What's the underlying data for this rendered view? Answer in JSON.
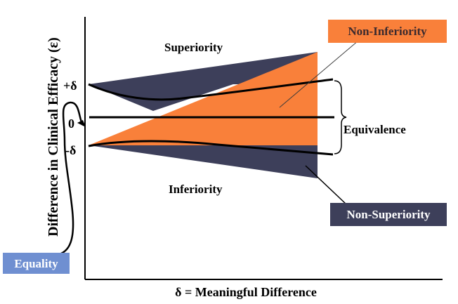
{
  "axes": {
    "y_label": "Difference in Clinical Efficacy (ε)",
    "x_label": "δ = Meaningful Difference",
    "ticks": {
      "plus_delta": "+δ",
      "zero": "0",
      "minus_delta": "-δ"
    }
  },
  "regions": {
    "superiority": "Superiority",
    "inferiority": "Inferiority",
    "equivalence": "Equivalence"
  },
  "callouts": {
    "non_inferiority": "Non-Inferiority",
    "non_superiority": "Non-Superiority",
    "equality": "Equality"
  },
  "colors": {
    "non_inferiority_fill": "#f9803a",
    "non_superiority_fill": "#3d3f5a",
    "equality_fill": "#6f8fd1",
    "line": "#000000"
  }
}
